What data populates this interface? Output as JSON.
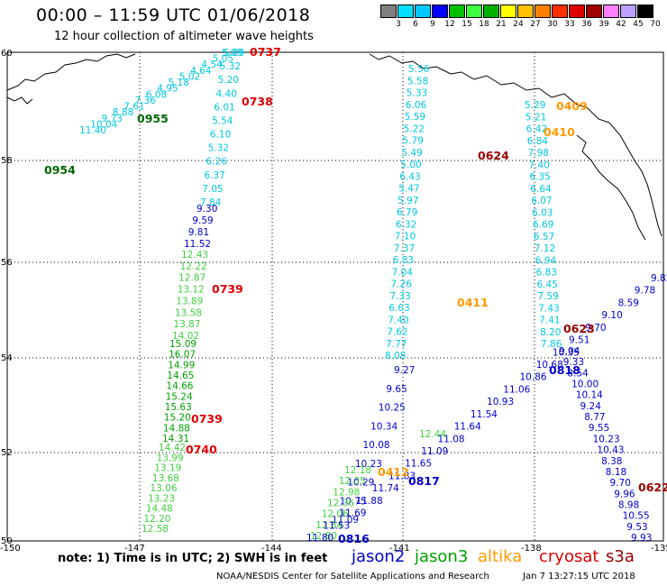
{
  "header": {
    "title": "00:00 – 11:59 UTC 01/06/2018",
    "subtitle": "12 hour collection of altimeter wave heights"
  },
  "color_scale": {
    "labels": [
      "3",
      "6",
      "9",
      "12",
      "15",
      "18",
      "21",
      "24",
      "27",
      "30",
      "33",
      "36",
      "39",
      "42",
      "45",
      "70",
      "(ft)"
    ],
    "colors": [
      "#7f7f7f",
      "#00e0ff",
      "#00c8ff",
      "#0000ff",
      "#00c000",
      "#40ff40",
      "#00b000",
      "#ffff00",
      "#ffc000",
      "#ff8000",
      "#ff3000",
      "#e00000",
      "#a00000",
      "#ff80ff",
      "#c0a0ff",
      "#000000"
    ]
  },
  "axes": {
    "lon_labels": [
      "-150",
      "-147",
      "-144",
      "-141",
      "-138",
      "-135"
    ],
    "lat_labels": [
      "50",
      "52",
      "54",
      "56",
      "58",
      "60"
    ]
  },
  "legend": {
    "note": "note:  1) Time is in UTC;  2) SWH is in feet",
    "satellites": [
      {
        "name": "jason2",
        "color": "#0000cc"
      },
      {
        "name": "jason3",
        "color": "#00a000"
      },
      {
        "name": "altika",
        "color": "#ff9900"
      },
      {
        "name": "cryosat",
        "color": "#dd0000"
      },
      {
        "name": "s3a",
        "color": "#990000"
      }
    ]
  },
  "footer": {
    "credit": "NOAA/NESDIS Center for Satellite Applications and Research",
    "timestamp": "Jan  7 13:27:15 UTC 2018"
  },
  "time_labels": [
    {
      "text": "0737",
      "color": "#dd0000"
    },
    {
      "text": "0738",
      "color": "#dd0000"
    },
    {
      "text": "0955",
      "color": "#006600"
    },
    {
      "text": "0954",
      "color": "#006600"
    },
    {
      "text": "0739",
      "color": "#dd0000"
    },
    {
      "text": "0739",
      "color": "#dd0000"
    },
    {
      "text": "0740",
      "color": "#dd0000"
    },
    {
      "text": "0409",
      "color": "#ff9900"
    },
    {
      "text": "0410",
      "color": "#ff9900"
    },
    {
      "text": "0624",
      "color": "#990000"
    },
    {
      "text": "0411",
      "color": "#ff9900"
    },
    {
      "text": "0623",
      "color": "#990000"
    },
    {
      "text": "0818",
      "color": "#0000cc"
    },
    {
      "text": "0412",
      "color": "#ff9900"
    },
    {
      "text": "0817",
      "color": "#0000cc"
    },
    {
      "text": "0816",
      "color": "#0000cc"
    },
    {
      "text": "0622",
      "color": "#990000"
    }
  ],
  "tracks": [
    {
      "color": "#00c8e0",
      "values": [
        "5.09",
        "5.05",
        "4.54",
        "4.64",
        "5.02",
        "5.18",
        "4.95",
        "6.08",
        "7.36",
        "7.61",
        "8.88",
        "9.73",
        "10.04",
        "11.40"
      ]
    },
    {
      "color": "#00c8e0",
      "values": [
        "5.09",
        "5.32",
        "5.20",
        "4.40",
        "6.01",
        "5.54",
        "6.10",
        "5.32",
        "6.26",
        "6.37",
        "7.05",
        "7.84"
      ]
    },
    {
      "color": "#0000cc",
      "values": [
        "9.30",
        "9.59",
        "9.81",
        "11.52"
      ]
    },
    {
      "color": "#40d040",
      "values": [
        "12.43",
        "12.22",
        "12.87",
        "13.12",
        "13.89",
        "13.58",
        "13.87",
        "14.02"
      ]
    },
    {
      "color": "#00a000",
      "values": [
        "15.09",
        "16.07",
        "14.99",
        "14.65",
        "14.66",
        "15.24",
        "15.63",
        "15.20",
        "14.88",
        "14.31"
      ]
    },
    {
      "color": "#40d040",
      "values": [
        "14.42",
        "13.99",
        "13.19",
        "13.68",
        "13.06",
        "13.23",
        "14.48",
        "12.20",
        "12.58"
      ]
    },
    {
      "color": "#00c8e0",
      "values": [
        "5.56",
        "5.58",
        "5.33",
        "6.06",
        "5.59",
        "5.22",
        "5.79",
        "5.49",
        "5.00",
        "6.43",
        "5.47",
        "5.97",
        "6.79",
        "6.32",
        "7.10",
        "7.37",
        "6.83",
        "7.04",
        "7.26",
        "7.33",
        "6.63",
        "7.40",
        "7.62",
        "7.77",
        "8.08"
      ]
    },
    {
      "color": "#0000cc",
      "values": [
        "9.27",
        "9.65",
        "10.25",
        "10.34",
        "10.08",
        "10.23",
        "10.29",
        "10.75",
        "11.09"
      ]
    },
    {
      "color": "#40d040",
      "values": [
        "12.18",
        "12.35",
        "12.98",
        "12.36",
        "12.06",
        "12.84",
        "12.80"
      ]
    },
    {
      "color": "#00c8e0",
      "values": [
        "5.29",
        "5.21",
        "6.42",
        "6.84",
        "7.98",
        "7.40",
        "6.35",
        "6.64",
        "6.07",
        "6.03",
        "6.69",
        "6.57",
        "7.12",
        "6.94",
        "6.83",
        "6.45",
        "7.59",
        "7.43",
        "7.41",
        "8.20",
        "7.86"
      ]
    },
    {
      "color": "#0000cc",
      "values": [
        "9.04",
        "9.33",
        "8.54",
        "10.00",
        "10.14",
        "9.24",
        "8.77",
        "9.55",
        "10.23",
        "10.43",
        "8.38",
        "8.18",
        "9.70",
        "9.96",
        "8.98",
        "10.55",
        "9.53",
        "9.93"
      ]
    },
    {
      "color": "#0000cc",
      "values": [
        "9.82",
        "9.78",
        "8.59",
        "9.10",
        "9.70",
        "9.51",
        "10.35",
        "10.68",
        "10.86",
        "11.06",
        "10.93",
        "11.54",
        "11.64",
        "11.08",
        "11.09",
        "11.65",
        "11.83",
        "11.74",
        "11.88",
        "11.69",
        "11.53",
        "11.80"
      ]
    },
    {
      "color": "#40d040",
      "values": [
        "12.44"
      ]
    }
  ]
}
